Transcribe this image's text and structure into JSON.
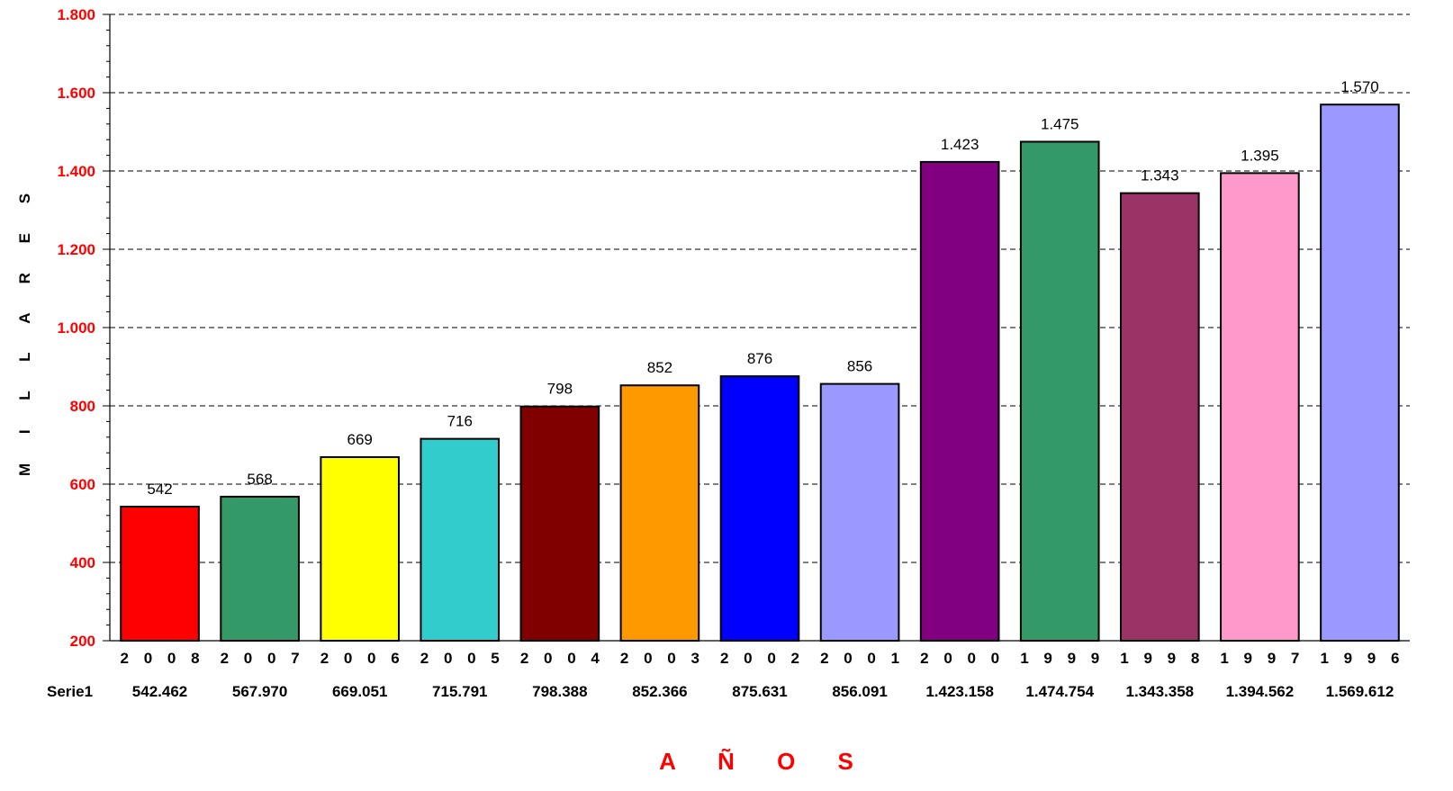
{
  "chart_data": {
    "type": "bar",
    "xlabel": "A Ñ O S",
    "ylabel": "M I L L A R E S",
    "ylim": [
      200,
      1800
    ],
    "yticks": [
      200,
      400,
      600,
      800,
      1000,
      1200,
      1400,
      1600,
      1800
    ],
    "ytick_labels": [
      "200",
      "400",
      "600",
      "800",
      "1.000",
      "1.200",
      "1.400",
      "1.600",
      "1.800"
    ],
    "grid": "horizontal dashed",
    "categories": [
      "2 0 0 8",
      "2 0 0 7",
      "2 0 0 6",
      "2 0 0 5",
      "2 0 0 4",
      "2 0 0 3",
      "2 0 0 2",
      "2 0 0 1",
      "2 0 0 0",
      "1 9 9 9",
      "1 9 9 8",
      "1 9 9 7",
      "1 9 9 6"
    ],
    "series": [
      {
        "name": "Serie1",
        "values": [
          542.462,
          567.97,
          669.051,
          715.791,
          798.388,
          852.366,
          875.631,
          856.091,
          1423.158,
          1474.754,
          1343.358,
          1394.562,
          1569.612
        ],
        "data_labels": [
          "542",
          "568",
          "669",
          "716",
          "798",
          "852",
          "876",
          "856",
          "1.423",
          "1.475",
          "1.343",
          "1.395",
          "1.570"
        ],
        "table_values": [
          "542.462",
          "567.970",
          "669.051",
          "715.791",
          "798.388",
          "852.366",
          "875.631",
          "856.091",
          "1.423.158",
          "1.474.754",
          "1.343.358",
          "1.394.562",
          "1.569.612"
        ],
        "colors": [
          "#ff0000",
          "#339966",
          "#ffff00",
          "#33cccc",
          "#800000",
          "#ff9900",
          "#0000ff",
          "#9999ff",
          "#800080",
          "#339966",
          "#993366",
          "#ff99cc",
          "#9999ff"
        ]
      }
    ]
  }
}
